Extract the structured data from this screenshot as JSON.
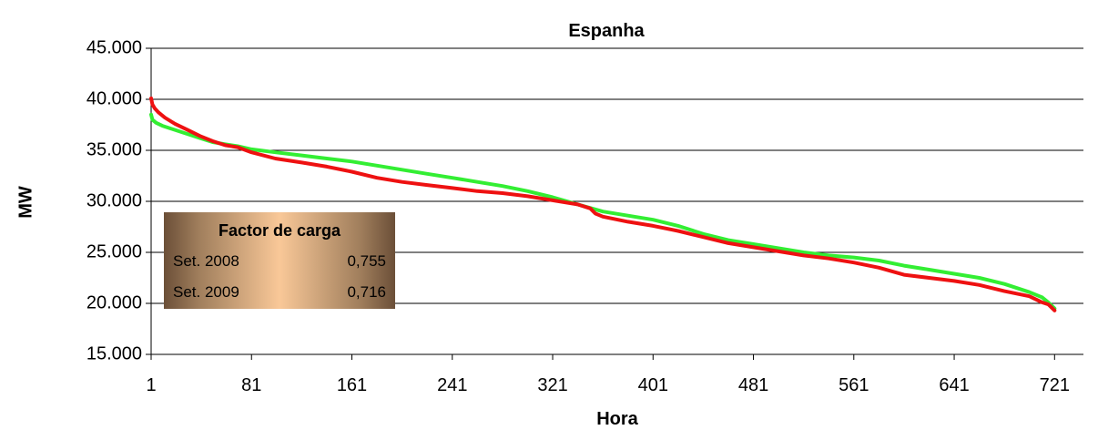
{
  "chart_data": {
    "type": "line",
    "title": "Espanha",
    "xlabel": "Hora",
    "ylabel": "MW",
    "xlim": [
      1,
      744
    ],
    "ylim": [
      15000,
      45000
    ],
    "x_ticks": [
      1,
      81,
      161,
      241,
      321,
      401,
      481,
      561,
      641,
      721
    ],
    "x_tick_labels": [
      "1",
      "81",
      "161",
      "241",
      "321",
      "401",
      "481",
      "561",
      "641",
      "721"
    ],
    "y_ticks": [
      15000,
      20000,
      25000,
      30000,
      35000,
      40000,
      45000
    ],
    "y_tick_labels": [
      "15.000",
      "20.000",
      "25.000",
      "30.000",
      "35.000",
      "40.000",
      "45.000"
    ],
    "grid": "horizontal",
    "legend": "none",
    "series": [
      {
        "color": "#33ee33",
        "x": [
          1,
          2,
          5,
          10,
          20,
          30,
          40,
          50,
          60,
          70,
          81,
          100,
          121,
          141,
          161,
          181,
          201,
          221,
          241,
          261,
          281,
          301,
          321,
          341,
          361,
          381,
          401,
          421,
          441,
          461,
          481,
          501,
          521,
          541,
          561,
          581,
          601,
          621,
          641,
          661,
          681,
          701,
          711,
          716,
          721
        ],
        "y": [
          38500,
          38000,
          37700,
          37400,
          37000,
          36600,
          36200,
          35800,
          35600,
          35400,
          35100,
          34800,
          34500,
          34200,
          33900,
          33500,
          33100,
          32700,
          32300,
          31900,
          31500,
          31000,
          30400,
          29700,
          29000,
          28600,
          28200,
          27600,
          26800,
          26200,
          25800,
          25400,
          25000,
          24700,
          24500,
          24200,
          23700,
          23300,
          22900,
          22500,
          21900,
          21100,
          20600,
          20100,
          19500
        ]
      },
      {
        "color": "#ee1111",
        "x": [
          1,
          2,
          4,
          7,
          12,
          20,
          30,
          40,
          50,
          60,
          70,
          81,
          100,
          121,
          141,
          161,
          181,
          201,
          221,
          241,
          261,
          281,
          301,
          321,
          341,
          351,
          355,
          361,
          381,
          401,
          421,
          441,
          461,
          481,
          501,
          521,
          541,
          561,
          581,
          601,
          621,
          641,
          661,
          681,
          701,
          711,
          716,
          721
        ],
        "y": [
          40100,
          39500,
          39100,
          38700,
          38200,
          37600,
          37000,
          36400,
          35900,
          35500,
          35300,
          34800,
          34200,
          33800,
          33400,
          32900,
          32300,
          31900,
          31600,
          31300,
          31000,
          30800,
          30500,
          30100,
          29700,
          29300,
          28800,
          28500,
          28000,
          27600,
          27100,
          26500,
          25900,
          25500,
          25100,
          24700,
          24400,
          24000,
          23500,
          22800,
          22500,
          22200,
          21800,
          21200,
          20700,
          20100,
          19900,
          19300
        ]
      }
    ],
    "annotation_box": {
      "title": "Factor de carga",
      "rows": [
        {
          "label": "Set. 2008",
          "value": "0,755"
        },
        {
          "label": "Set. 2009",
          "value": "0,716"
        }
      ]
    }
  }
}
